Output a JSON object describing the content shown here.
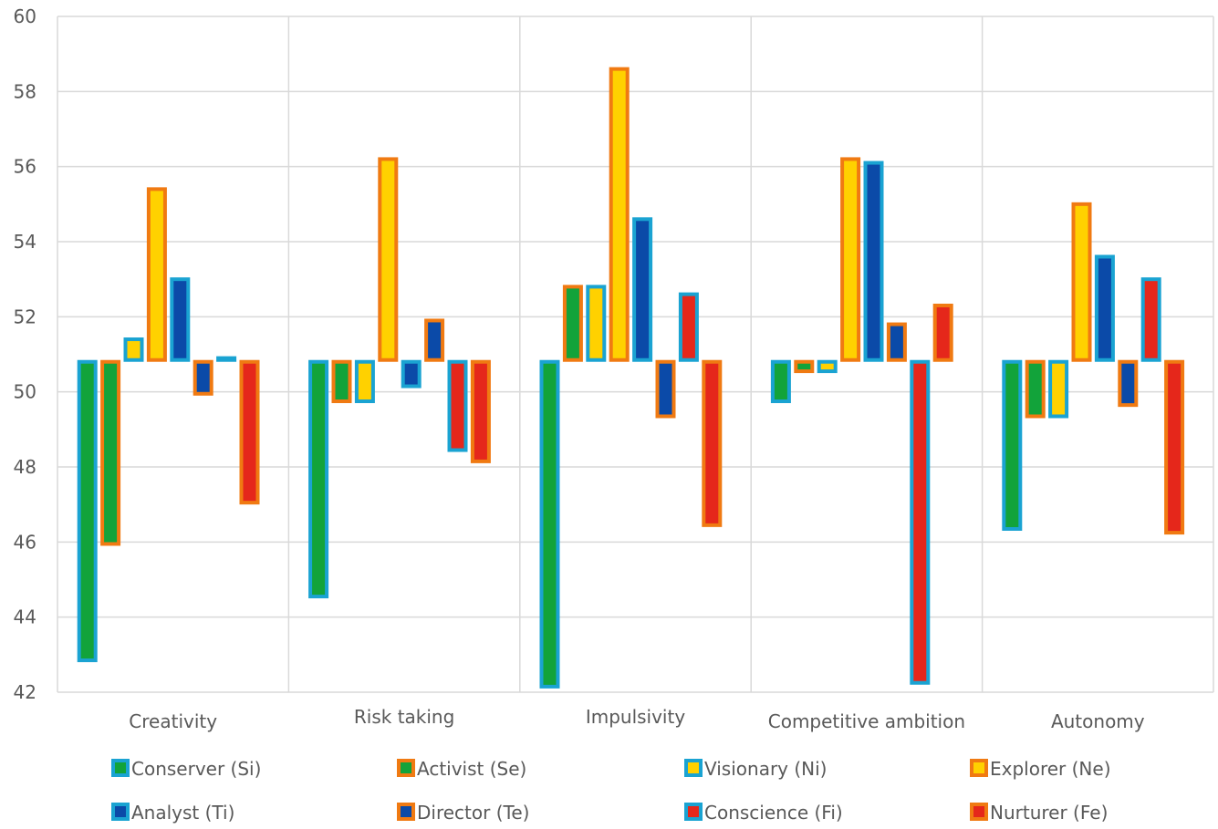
{
  "chart_data": {
    "type": "bar",
    "categories": [
      "Creativity",
      "Risk taking",
      "Impulsivity",
      "Competitive ambition",
      "Autonomy"
    ],
    "baseline": 50.8,
    "ylim": [
      42,
      60
    ],
    "yticks": [
      42,
      44,
      46,
      48,
      50,
      52,
      54,
      56,
      58,
      60
    ],
    "grid": true,
    "legend_position": "bottom",
    "series": [
      {
        "name": "Conserver (Si)",
        "fill": "#12A33A",
        "border": "#1AA3D2",
        "values": [
          42.8,
          44.5,
          42.1,
          49.7,
          46.3
        ]
      },
      {
        "name": "Activist (Se)",
        "fill": "#12A33A",
        "border": "#F07A12",
        "values": [
          45.9,
          49.7,
          52.8,
          50.5,
          49.3
        ]
      },
      {
        "name": "Visionary (Ni)",
        "fill": "#FFD100",
        "border": "#1AA3D2",
        "values": [
          51.4,
          49.7,
          52.8,
          50.5,
          49.3
        ]
      },
      {
        "name": "Explorer (Ne)",
        "fill": "#FFD100",
        "border": "#F07A12",
        "values": [
          55.4,
          56.2,
          58.6,
          56.2,
          55.0
        ]
      },
      {
        "name": "Analyst (Ti)",
        "fill": "#0B4AA8",
        "border": "#1AA3D2",
        "values": [
          53.0,
          50.1,
          54.6,
          56.1,
          53.6
        ]
      },
      {
        "name": "Director (Te)",
        "fill": "#0B4AA8",
        "border": "#F07A12",
        "values": [
          49.9,
          51.9,
          49.3,
          51.8,
          49.6
        ]
      },
      {
        "name": "Conscience (Fi)",
        "fill": "#E5271B",
        "border": "#1AA3D2",
        "values": [
          50.9,
          48.4,
          52.6,
          42.2,
          53.0
        ]
      },
      {
        "name": "Nurturer (Fe)",
        "fill": "#E5271B",
        "border": "#F07A12",
        "values": [
          47.0,
          48.1,
          46.4,
          52.3,
          46.2
        ]
      }
    ]
  }
}
